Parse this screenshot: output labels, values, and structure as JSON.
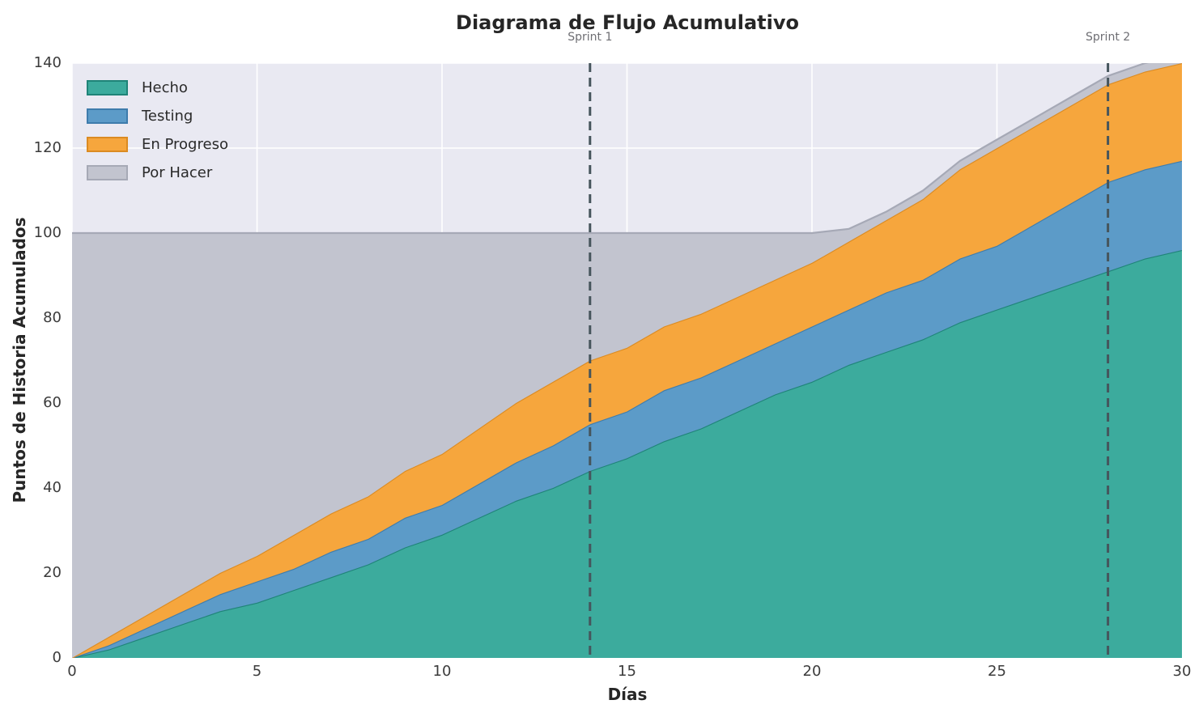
{
  "title": "Diagrama de Flujo Acumulativo",
  "chart_data": {
    "type": "area",
    "stacked": true,
    "title": "Diagrama de Flujo Acumulativo",
    "xlabel": "Días",
    "ylabel": "Puntos de Historia Acumulados",
    "xlim": [
      0,
      30
    ],
    "ylim": [
      0,
      140
    ],
    "xticks": [
      0,
      5,
      10,
      15,
      20,
      25,
      30
    ],
    "yticks": [
      0,
      20,
      40,
      60,
      80,
      100,
      120,
      140
    ],
    "grid": true,
    "legend_position": "upper-left",
    "x": [
      0,
      1,
      2,
      3,
      4,
      5,
      6,
      7,
      8,
      9,
      10,
      11,
      12,
      13,
      14,
      15,
      16,
      17,
      18,
      19,
      20,
      21,
      22,
      23,
      24,
      25,
      26,
      27,
      28,
      29,
      30
    ],
    "series": [
      {
        "name": "Hecho",
        "fill": "#3CAB9D",
        "edge": "#1F8478",
        "values": [
          0,
          2,
          5,
          8,
          11,
          13,
          16,
          19,
          22,
          26,
          29,
          33,
          37,
          40,
          44,
          47,
          51,
          54,
          58,
          62,
          65,
          69,
          72,
          75,
          79,
          82,
          85,
          88,
          91,
          94,
          96
        ]
      },
      {
        "name": "Testing",
        "fill": "#5C9BC8",
        "edge": "#3E7CAC",
        "values": [
          0,
          1,
          2,
          3,
          4,
          5,
          5,
          6,
          6,
          7,
          7,
          8,
          9,
          10,
          11,
          11,
          12,
          12,
          12,
          12,
          13,
          13,
          14,
          14,
          15,
          15,
          17,
          19,
          21,
          21,
          21
        ]
      },
      {
        "name": "En Progreso",
        "fill": "#F6A63D",
        "edge": "#DB8B22",
        "values": [
          0,
          2,
          3,
          4,
          5,
          6,
          8,
          9,
          10,
          11,
          12,
          13,
          14,
          15,
          15,
          15,
          15,
          15,
          15,
          15,
          15,
          16,
          17,
          19,
          21,
          23,
          23,
          23,
          23,
          23,
          23
        ]
      },
      {
        "name": "Por Hacer",
        "fill": "#C2C4CF",
        "edge": "#A6A9B6",
        "values": [
          100,
          95,
          90,
          85,
          80,
          76,
          71,
          66,
          62,
          56,
          52,
          46,
          40,
          35,
          30,
          27,
          22,
          19,
          15,
          11,
          7,
          3,
          2,
          2,
          2,
          2,
          2,
          2,
          2,
          2,
          2
        ]
      }
    ],
    "annotations": [
      {
        "label": "Sprint 1",
        "x": 14
      },
      {
        "label": "Sprint 2",
        "x": 28
      }
    ],
    "colors": {
      "plot_background": "#E9E9F2",
      "figure_background": "#FFFFFF",
      "grid": "#FFFFFF",
      "sprint_line": "#46555C",
      "title_text": "#262626",
      "tick_text": "#3B3B3B",
      "annotation_text": "#6E6E73"
    }
  }
}
